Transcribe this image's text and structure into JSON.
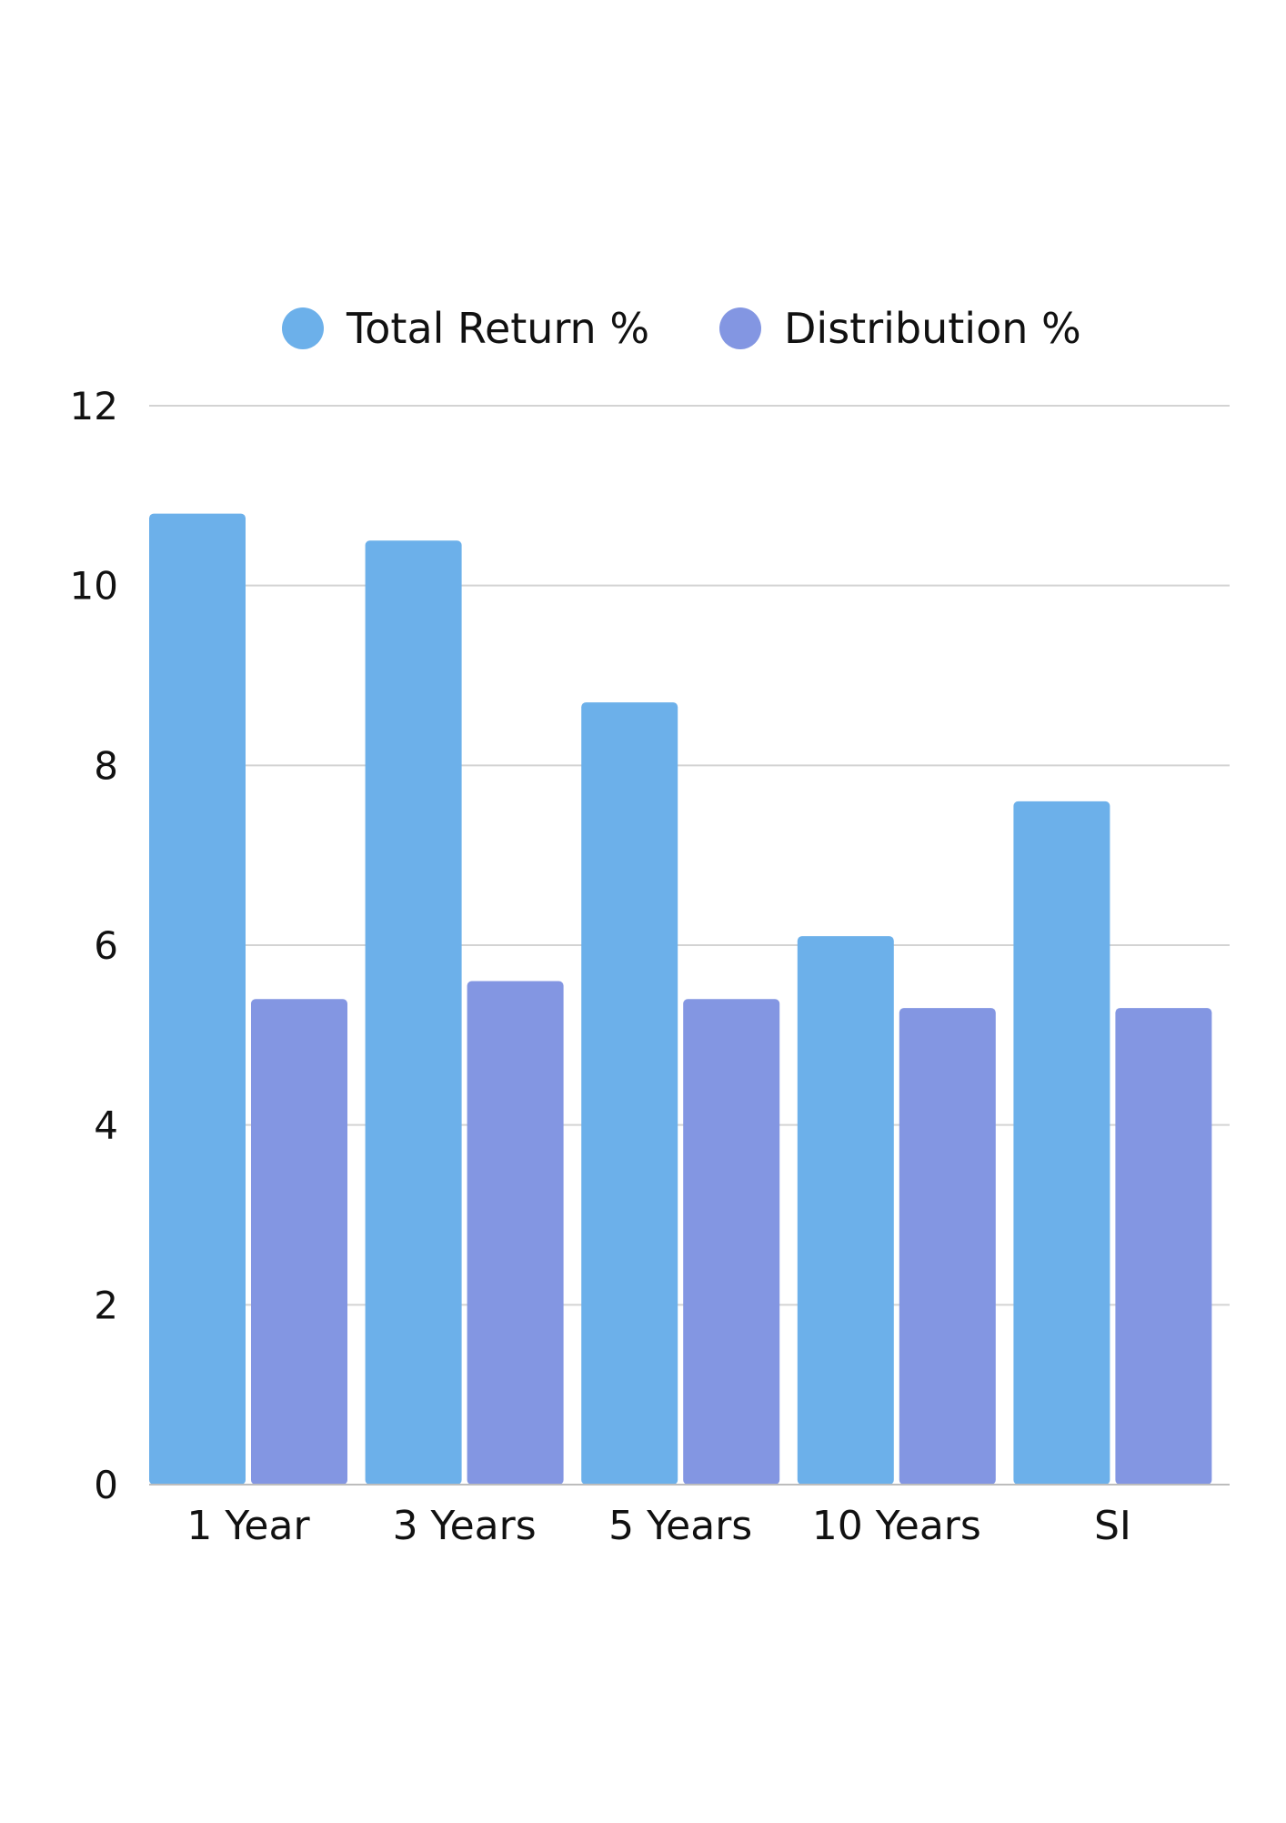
{
  "chart_data": {
    "type": "bar",
    "categories": [
      "1 Year",
      "3 Years",
      "5 Years",
      "10 Years",
      "SI"
    ],
    "series": [
      {
        "name": "Total Return %",
        "values": [
          10.8,
          10.5,
          8.7,
          6.1,
          7.6
        ],
        "color": "#6cb0ea"
      },
      {
        "name": "Distribution %",
        "values": [
          5.4,
          5.6,
          5.4,
          5.3,
          5.3
        ],
        "color": "#8396e2"
      }
    ],
    "ylim": [
      0,
      12
    ],
    "yticks": [
      0,
      2,
      4,
      6,
      8,
      10,
      12
    ],
    "grid": true,
    "legend": "top-center"
  }
}
